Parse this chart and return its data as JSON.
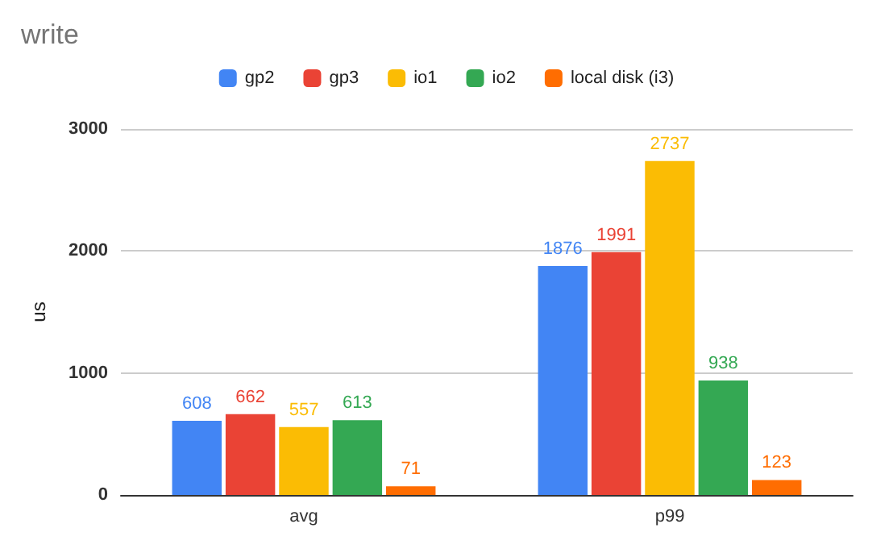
{
  "chart_data": {
    "type": "bar",
    "title": "write",
    "ylabel": "us",
    "categories": [
      "avg",
      "p99"
    ],
    "series": [
      {
        "name": "gp2",
        "color": "#4285f4",
        "values": [
          608,
          1876
        ]
      },
      {
        "name": "gp3",
        "color": "#ea4335",
        "values": [
          662,
          1991
        ]
      },
      {
        "name": "io1",
        "color": "#fbbc04",
        "values": [
          557,
          2737
        ]
      },
      {
        "name": "io2",
        "color": "#34a853",
        "values": [
          613,
          938
        ]
      },
      {
        "name": "local disk (i3)",
        "color": "#ff6d01",
        "values": [
          71,
          123
        ]
      }
    ],
    "ylim": [
      0,
      3000
    ],
    "yticks": [
      0,
      1000,
      2000,
      3000
    ],
    "grid": "y",
    "legend": "top",
    "data_labels": true
  }
}
